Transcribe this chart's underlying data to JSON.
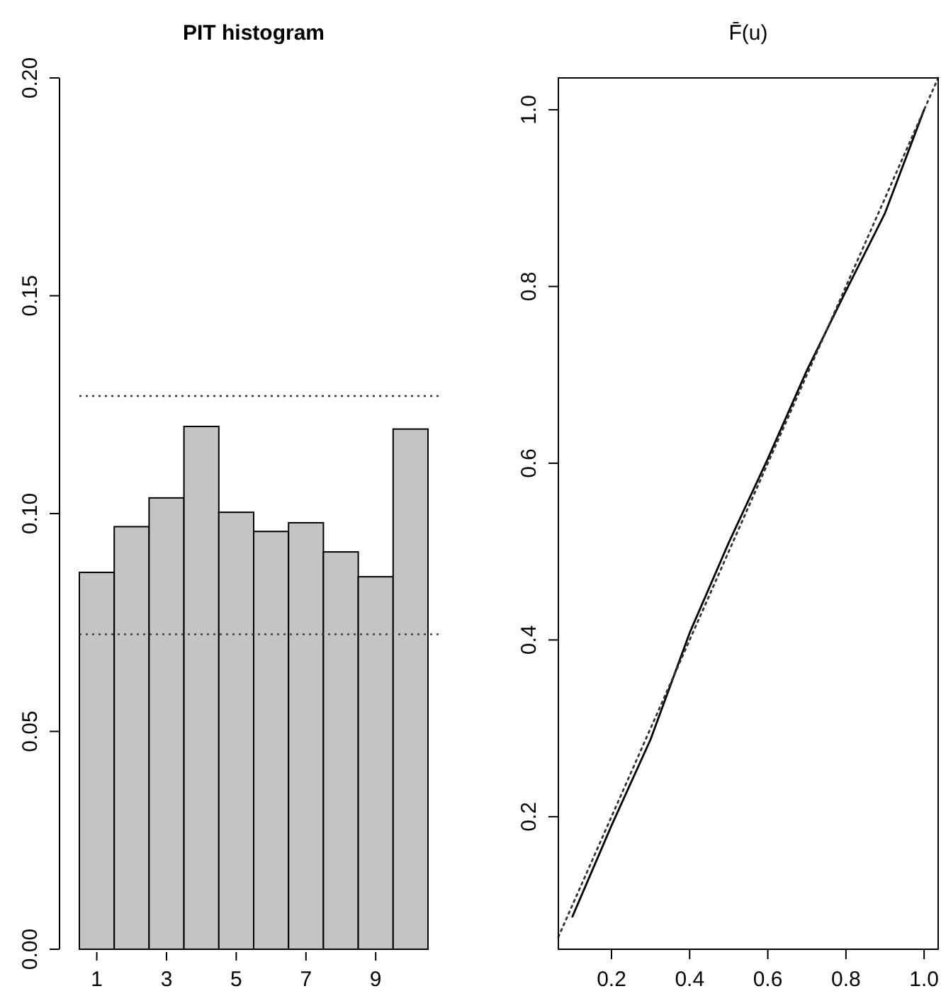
{
  "chart_data": [
    {
      "type": "bar",
      "title": "PIT histogram",
      "categories": [
        "1",
        null,
        "3",
        null,
        "5",
        null,
        "7",
        null,
        "9",
        null
      ],
      "values": [
        0.0865,
        0.097,
        0.1036,
        0.12,
        0.1003,
        0.0959,
        0.0979,
        0.0912,
        0.0855,
        0.1194
      ],
      "color": "#c4c4c4",
      "ylim": [
        0,
        0.2
      ],
      "yticks": [
        {
          "value": 0,
          "label": "0.00"
        },
        {
          "value": 0.05,
          "label": "0.05"
        },
        {
          "value": 0.1,
          "label": "0.10"
        },
        {
          "value": 0.15,
          "label": "0.15"
        },
        {
          "value": 0.2,
          "label": "0.20"
        }
      ],
      "ref_lines": [
        {
          "axis": "y",
          "value": 0.127,
          "label": null,
          "color": "#333333",
          "line_style": "dotted"
        },
        {
          "axis": "y",
          "value": 0.0723,
          "label": null,
          "color": "#333333",
          "line_style": "dotted"
        }
      ]
    },
    {
      "type": "line",
      "title": "F̄(u)",
      "xlim": [
        0.064,
        1.036
      ],
      "ylim": [
        0.05,
        1.036
      ],
      "xticks": [
        0.2,
        0.4,
        0.6,
        0.8,
        {
          "value": 1,
          "label": "1.0"
        }
      ],
      "yticks": [
        0.2,
        0.4,
        0.6,
        0.8,
        {
          "value": 1,
          "label": "1.0"
        }
      ],
      "series": [
        {
          "color": "#000000",
          "line_style": "solid",
          "x": [
            0.1,
            0.2,
            0.3,
            0.4,
            0.5,
            0.6,
            0.7,
            0.8,
            0.9,
            1.0
          ],
          "values": [
            0.087,
            0.19,
            0.2875,
            0.408,
            0.51,
            0.605,
            0.705,
            0.795,
            0.883,
            1.0
          ]
        },
        {
          "color": "#333333",
          "line_style": "dotted",
          "x": [
            0.064,
            1.036
          ],
          "values": [
            0.064,
            1.036
          ]
        }
      ]
    }
  ]
}
